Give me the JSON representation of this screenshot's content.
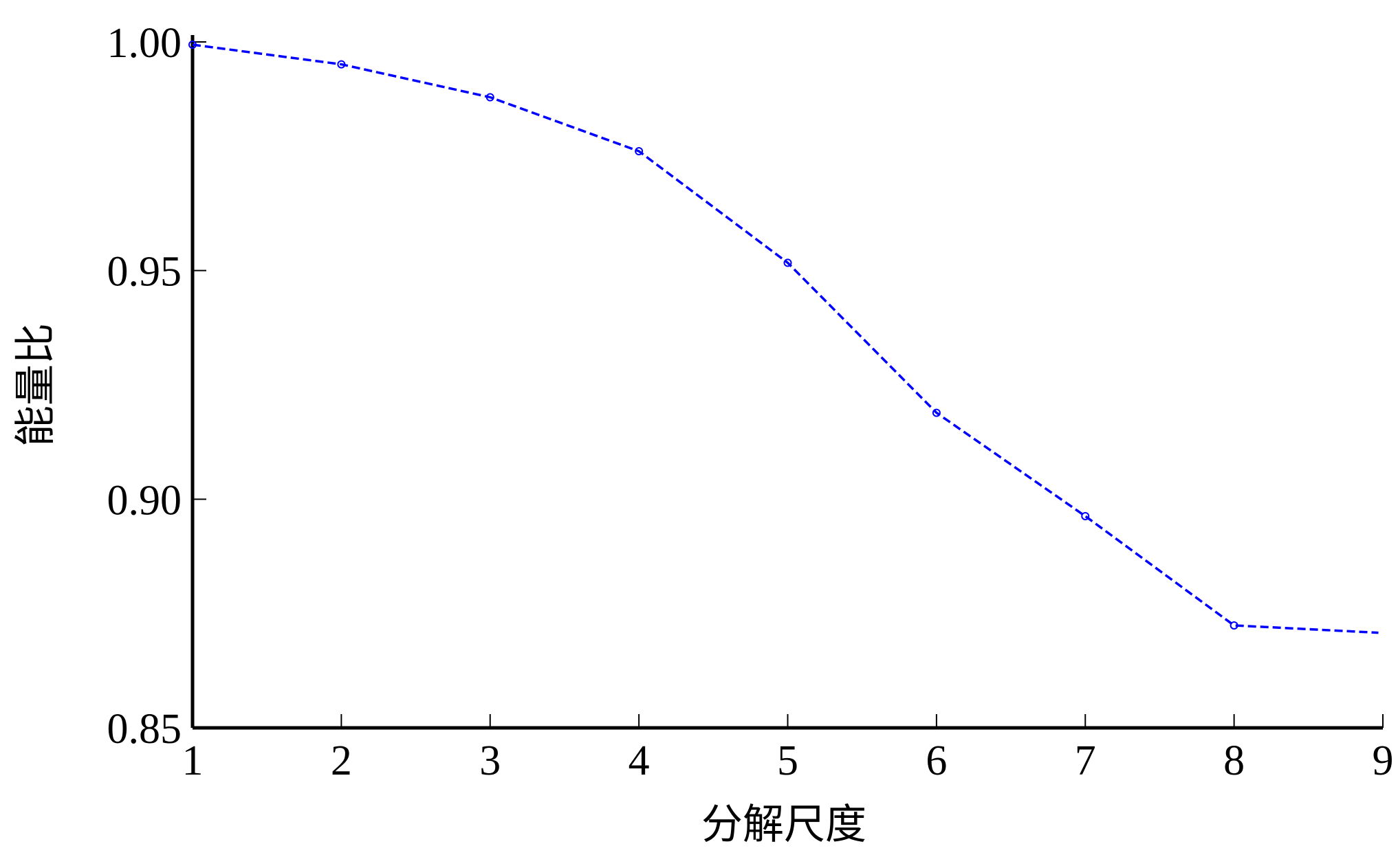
{
  "chart_data": {
    "type": "line",
    "title": "",
    "xlabel": "分解尺度",
    "ylabel": "能量比",
    "xlim": [
      1,
      9
    ],
    "ylim": [
      0.85,
      1.0
    ],
    "xticks": [
      "1",
      "2",
      "3",
      "4",
      "5",
      "6",
      "7",
      "8",
      "9"
    ],
    "yticks": [
      "0.85",
      "0.90",
      "0.95",
      "1.00"
    ],
    "grid": false,
    "series": [
      {
        "color": "#0000ff",
        "line_style": "dashed",
        "marker": "circle",
        "x": [
          1,
          2,
          3,
          4,
          5,
          6,
          7,
          8,
          9
        ],
        "y": [
          0.9994,
          0.9951,
          0.9879,
          0.9761,
          0.9517,
          0.9189,
          0.8963,
          0.8724,
          0.8708
        ]
      }
    ]
  }
}
